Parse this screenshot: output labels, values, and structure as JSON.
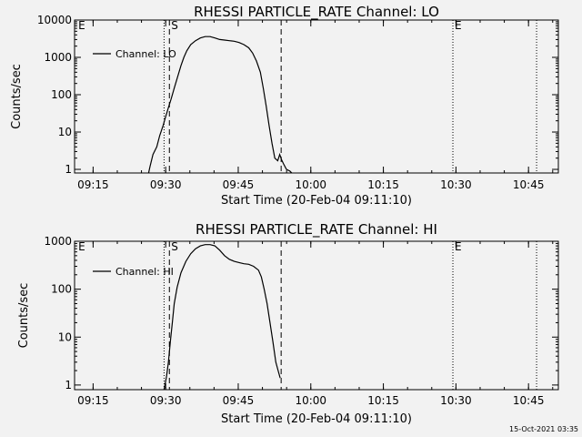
{
  "colors": {
    "background": "#f2f2f2",
    "foreground": "#000000"
  },
  "footer": {
    "timestamp": "15-Oct-2021 03:35"
  },
  "chart_data": [
    {
      "type": "line",
      "title": "RHESSI PARTICLE_RATE Channel: LO",
      "xlabel": "Start Time (20-Feb-04 09:11:10)",
      "ylabel": "Counts/sec",
      "x_unit": "minutes after 09:11:10",
      "xlim": [
        0,
        100
      ],
      "ylim": [
        0.8,
        10000
      ],
      "y_scale": "log",
      "x_ticks": [
        3.83,
        18.83,
        33.83,
        48.83,
        63.83,
        78.83,
        93.83
      ],
      "x_tick_labels": [
        "09:15",
        "09:30",
        "09:45",
        "10:00",
        "10:15",
        "10:30",
        "10:45"
      ],
      "y_ticks": [
        1,
        10,
        100,
        1000,
        10000
      ],
      "y_tick_labels": [
        "1",
        "10",
        "100",
        "1000",
        "10000"
      ],
      "series": [
        {
          "name": "Channel: LO",
          "x": [
            15.3,
            15.6,
            16.2,
            17.0,
            17.6,
            18.3,
            18.8,
            19.4,
            20.0,
            20.6,
            21.3,
            22.0,
            22.6,
            23.2,
            24.0,
            25.0,
            26.0,
            27.0,
            28.0,
            29.0,
            30.0,
            31.0,
            32.0,
            33.0,
            34.0,
            35.0,
            36.0,
            36.8,
            37.6,
            38.4,
            39.0,
            39.6,
            40.2,
            40.8,
            41.4,
            42.0,
            42.4,
            42.8,
            43.2,
            43.8,
            44.5,
            44.9
          ],
          "y": [
            0.8,
            1.2,
            2.5,
            4,
            8,
            15,
            25,
            45,
            80,
            150,
            300,
            600,
            1000,
            1500,
            2200,
            2800,
            3300,
            3600,
            3600,
            3300,
            3000,
            2900,
            2800,
            2700,
            2500,
            2200,
            1800,
            1300,
            800,
            400,
            150,
            50,
            15,
            5,
            2,
            1.7,
            2.5,
            1.8,
            1.4,
            1.0,
            0.9,
            0.8
          ]
        }
      ],
      "annotations": [
        {
          "kind": "dotted",
          "x": 18.5
        },
        {
          "kind": "dashed",
          "x": 19.6,
          "label": "S"
        },
        {
          "kind": "dashed",
          "x": 42.7
        },
        {
          "kind": "dotted",
          "x": 78.2,
          "label": "E"
        },
        {
          "kind": "dotted",
          "x": 95.5
        },
        {
          "kind": "marker",
          "x": 0.4,
          "label": "E"
        }
      ],
      "legend": "top-left"
    },
    {
      "type": "line",
      "title": "RHESSI PARTICLE_RATE Channel: HI",
      "xlabel": "Start Time (20-Feb-04 09:11:10)",
      "ylabel": "Counts/sec",
      "x_unit": "minutes after 09:11:10",
      "xlim": [
        0,
        100
      ],
      "ylim": [
        0.8,
        1000
      ],
      "y_scale": "log",
      "x_ticks": [
        3.83,
        18.83,
        33.83,
        48.83,
        63.83,
        78.83,
        93.83
      ],
      "x_tick_labels": [
        "09:15",
        "09:30",
        "09:45",
        "10:00",
        "10:15",
        "10:30",
        "10:45"
      ],
      "y_ticks": [
        1,
        10,
        100,
        1000
      ],
      "y_tick_labels": [
        "1",
        "10",
        "100",
        "1000"
      ],
      "series": [
        {
          "name": "Channel: HI",
          "x": [
            18.5,
            19.0,
            19.4,
            19.8,
            20.2,
            20.6,
            21.2,
            22.0,
            23.0,
            24.0,
            25.0,
            26.0,
            27.0,
            28.0,
            29.0,
            30.0,
            31.0,
            32.0,
            33.0,
            34.0,
            35.0,
            36.0,
            37.0,
            38.0,
            38.6,
            39.2,
            39.8,
            40.4,
            41.0,
            41.6,
            42.2,
            42.5
          ],
          "y": [
            0.8,
            1.5,
            3,
            8,
            20,
            50,
            110,
            220,
            380,
            550,
            700,
            800,
            850,
            850,
            800,
            650,
            500,
            420,
            380,
            360,
            340,
            330,
            300,
            250,
            180,
            100,
            50,
            20,
            8,
            3,
            1.8,
            1.4
          ]
        }
      ],
      "annotations": [
        {
          "kind": "dotted",
          "x": 18.5
        },
        {
          "kind": "dashed",
          "x": 19.6,
          "label": "S"
        },
        {
          "kind": "dashed",
          "x": 42.7
        },
        {
          "kind": "dotted",
          "x": 78.2,
          "label": "E"
        },
        {
          "kind": "dotted",
          "x": 95.5
        },
        {
          "kind": "marker",
          "x": 0.4,
          "label": "E"
        }
      ],
      "legend": "top-left"
    }
  ]
}
